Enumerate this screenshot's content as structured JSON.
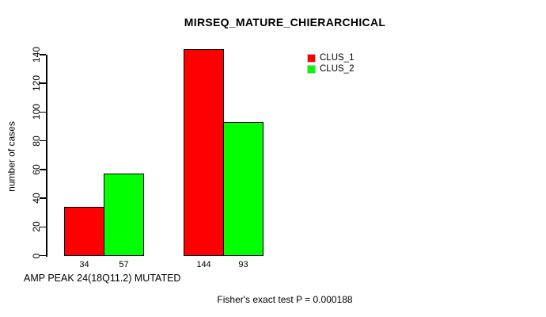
{
  "chart_data": {
    "type": "bar",
    "title": "MIRSEQ_MATURE_CHIERARCHICAL",
    "ylabel": "number of cases",
    "xlabel": "AMP PEAK 24(18Q11.2) MUTATED",
    "footnote": "Fisher's exact test P = 0.000188",
    "categories": [
      "",
      ""
    ],
    "series": [
      {
        "name": "CLUS_1",
        "color": "#ff0000",
        "values": [
          34,
          144
        ]
      },
      {
        "name": "CLUS_2",
        "color": "#00ff00",
        "values": [
          57,
          93
        ]
      }
    ],
    "bar_value_labels": [
      34,
      57,
      144,
      93
    ],
    "yticks": [
      0,
      20,
      40,
      60,
      80,
      100,
      120,
      140
    ],
    "ylim": [
      0,
      145
    ],
    "grid": false,
    "legend_position": "top-right",
    "axis_color": "#000000",
    "background_color": "#ffffff",
    "bar_border_color": "#000000"
  }
}
